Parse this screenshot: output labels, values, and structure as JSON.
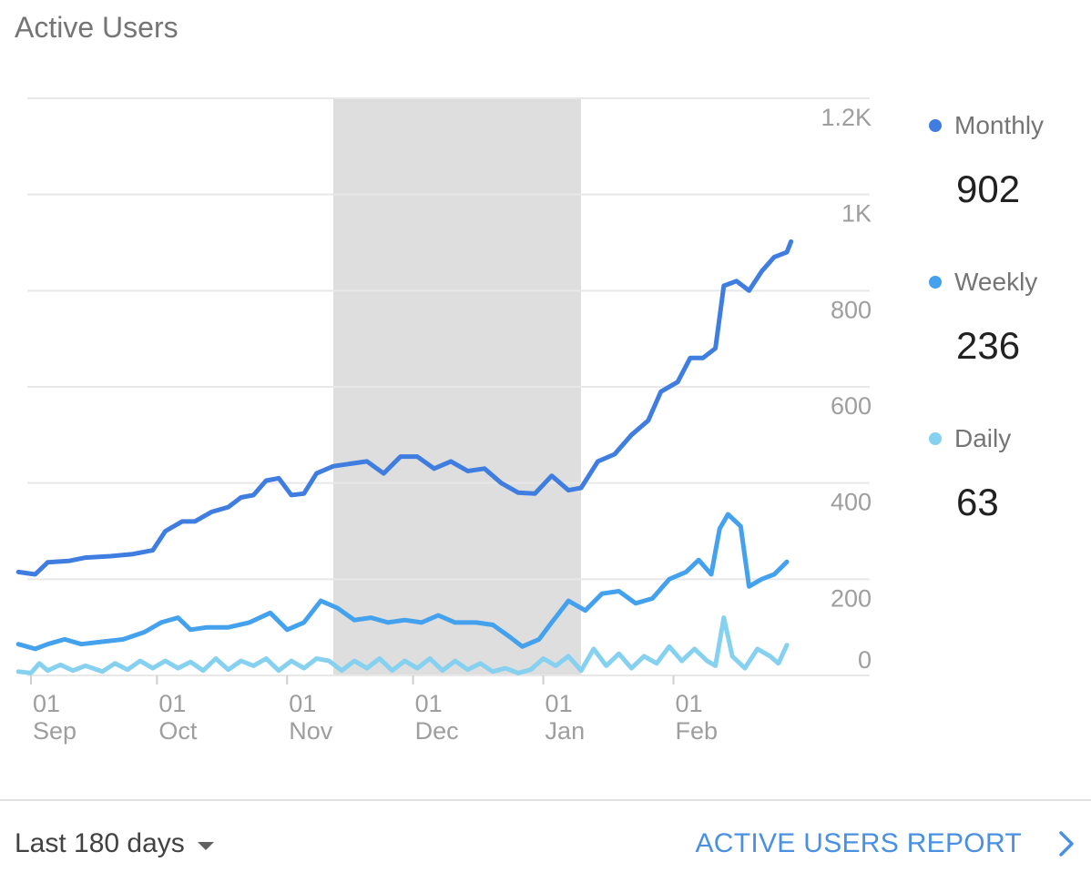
{
  "card": {
    "title": "Active Users"
  },
  "footer": {
    "range_label": "Last 180 days",
    "report_link": "ACTIVE USERS REPORT"
  },
  "legend": [
    {
      "name": "Monthly",
      "value": "902",
      "color": "#3f7de0"
    },
    {
      "name": "Weekly",
      "value": "236",
      "color": "#44a1ee"
    },
    {
      "name": "Daily",
      "value": "63",
      "color": "#86d1f0"
    }
  ],
  "chart_data": {
    "type": "line",
    "title": "Active Users",
    "x_start": "2017-09-01",
    "x_end": "2018-02-28",
    "xticks": [
      {
        "date": "2017-09-01",
        "label1": "01",
        "label2": "Sep"
      },
      {
        "date": "2017-10-01",
        "label1": "01",
        "label2": "Oct"
      },
      {
        "date": "2017-11-01",
        "label1": "01",
        "label2": "Nov"
      },
      {
        "date": "2017-12-01",
        "label1": "01",
        "label2": "Dec"
      },
      {
        "date": "2018-01-01",
        "label1": "01",
        "label2": "Jan"
      },
      {
        "date": "2018-02-01",
        "label1": "01",
        "label2": "Feb"
      }
    ],
    "ylim": [
      0,
      1200
    ],
    "yticks": [
      {
        "value": 1200,
        "label": "1.2K"
      },
      {
        "value": 1000,
        "label": "1K"
      },
      {
        "value": 800,
        "label": "800"
      },
      {
        "value": 600,
        "label": "600"
      },
      {
        "value": 400,
        "label": "400"
      },
      {
        "value": 200,
        "label": "200"
      },
      {
        "value": 0,
        "label": "0"
      }
    ],
    "highlight_range": [
      "2017-11-12",
      "2018-01-10"
    ],
    "series": [
      {
        "name": "Monthly",
        "color": "#3f7de0",
        "points": [
          [
            "2017-08-29",
            215
          ],
          [
            "2017-09-02",
            210
          ],
          [
            "2017-09-05",
            235
          ],
          [
            "2017-09-10",
            238
          ],
          [
            "2017-09-14",
            245
          ],
          [
            "2017-09-20",
            248
          ],
          [
            "2017-09-25",
            252
          ],
          [
            "2017-09-30",
            260
          ],
          [
            "2017-10-03",
            300
          ],
          [
            "2017-10-07",
            320
          ],
          [
            "2017-10-10",
            320
          ],
          [
            "2017-10-14",
            340
          ],
          [
            "2017-10-18",
            350
          ],
          [
            "2017-10-21",
            370
          ],
          [
            "2017-10-24",
            375
          ],
          [
            "2017-10-27",
            405
          ],
          [
            "2017-10-30",
            410
          ],
          [
            "2017-11-02",
            375
          ],
          [
            "2017-11-05",
            378
          ],
          [
            "2017-11-08",
            420
          ],
          [
            "2017-11-12",
            435
          ],
          [
            "2017-11-16",
            440
          ],
          [
            "2017-11-20",
            445
          ],
          [
            "2017-11-24",
            420
          ],
          [
            "2017-11-28",
            455
          ],
          [
            "2017-12-02",
            455
          ],
          [
            "2017-12-06",
            430
          ],
          [
            "2017-12-10",
            445
          ],
          [
            "2017-12-14",
            425
          ],
          [
            "2017-12-18",
            430
          ],
          [
            "2017-12-22",
            400
          ],
          [
            "2017-12-26",
            380
          ],
          [
            "2017-12-30",
            378
          ],
          [
            "2018-01-03",
            415
          ],
          [
            "2018-01-07",
            385
          ],
          [
            "2018-01-10",
            390
          ],
          [
            "2018-01-14",
            445
          ],
          [
            "2018-01-18",
            460
          ],
          [
            "2018-01-22",
            500
          ],
          [
            "2018-01-26",
            530
          ],
          [
            "2018-01-29",
            590
          ],
          [
            "2018-02-02",
            610
          ],
          [
            "2018-02-05",
            660
          ],
          [
            "2018-02-08",
            660
          ],
          [
            "2018-02-11",
            680
          ],
          [
            "2018-02-13",
            810
          ],
          [
            "2018-02-16",
            820
          ],
          [
            "2018-02-19",
            800
          ],
          [
            "2018-02-22",
            840
          ],
          [
            "2018-02-25",
            870
          ],
          [
            "2018-02-28",
            880
          ],
          [
            "2018-03-01",
            902
          ]
        ]
      },
      {
        "name": "Weekly",
        "color": "#44a1ee",
        "points": [
          [
            "2017-08-29",
            65
          ],
          [
            "2017-09-02",
            55
          ],
          [
            "2017-09-05",
            65
          ],
          [
            "2017-09-09",
            75
          ],
          [
            "2017-09-13",
            65
          ],
          [
            "2017-09-18",
            70
          ],
          [
            "2017-09-23",
            75
          ],
          [
            "2017-09-28",
            90
          ],
          [
            "2017-10-02",
            110
          ],
          [
            "2017-10-06",
            120
          ],
          [
            "2017-10-09",
            95
          ],
          [
            "2017-10-13",
            100
          ],
          [
            "2017-10-18",
            100
          ],
          [
            "2017-10-23",
            110
          ],
          [
            "2017-10-28",
            130
          ],
          [
            "2017-11-01",
            95
          ],
          [
            "2017-11-05",
            110
          ],
          [
            "2017-11-09",
            155
          ],
          [
            "2017-11-13",
            140
          ],
          [
            "2017-11-17",
            115
          ],
          [
            "2017-11-21",
            120
          ],
          [
            "2017-11-25",
            110
          ],
          [
            "2017-11-29",
            115
          ],
          [
            "2017-12-03",
            110
          ],
          [
            "2017-12-07",
            125
          ],
          [
            "2017-12-11",
            110
          ],
          [
            "2017-12-16",
            110
          ],
          [
            "2017-12-20",
            105
          ],
          [
            "2017-12-24",
            80
          ],
          [
            "2017-12-27",
            60
          ],
          [
            "2017-12-31",
            75
          ],
          [
            "2018-01-03",
            110
          ],
          [
            "2018-01-07",
            155
          ],
          [
            "2018-01-11",
            135
          ],
          [
            "2018-01-15",
            170
          ],
          [
            "2018-01-19",
            175
          ],
          [
            "2018-01-23",
            150
          ],
          [
            "2018-01-27",
            160
          ],
          [
            "2018-01-31",
            200
          ],
          [
            "2018-02-04",
            215
          ],
          [
            "2018-02-07",
            240
          ],
          [
            "2018-02-10",
            210
          ],
          [
            "2018-02-12",
            305
          ],
          [
            "2018-02-14",
            335
          ],
          [
            "2018-02-17",
            310
          ],
          [
            "2018-02-19",
            185
          ],
          [
            "2018-02-22",
            200
          ],
          [
            "2018-02-25",
            210
          ],
          [
            "2018-02-28",
            236
          ]
        ]
      },
      {
        "name": "Daily",
        "color": "#86d1f0",
        "points": [
          [
            "2017-08-29",
            8
          ],
          [
            "2017-09-01",
            5
          ],
          [
            "2017-09-03",
            25
          ],
          [
            "2017-09-05",
            10
          ],
          [
            "2017-09-08",
            22
          ],
          [
            "2017-09-11",
            10
          ],
          [
            "2017-09-14",
            20
          ],
          [
            "2017-09-18",
            8
          ],
          [
            "2017-09-21",
            25
          ],
          [
            "2017-09-24",
            12
          ],
          [
            "2017-09-27",
            30
          ],
          [
            "2017-09-30",
            15
          ],
          [
            "2017-10-03",
            30
          ],
          [
            "2017-10-06",
            15
          ],
          [
            "2017-10-09",
            28
          ],
          [
            "2017-10-12",
            10
          ],
          [
            "2017-10-15",
            35
          ],
          [
            "2017-10-18",
            12
          ],
          [
            "2017-10-21",
            30
          ],
          [
            "2017-10-24",
            20
          ],
          [
            "2017-10-27",
            35
          ],
          [
            "2017-10-30",
            10
          ],
          [
            "2017-11-02",
            30
          ],
          [
            "2017-11-05",
            15
          ],
          [
            "2017-11-08",
            35
          ],
          [
            "2017-11-11",
            30
          ],
          [
            "2017-11-14",
            10
          ],
          [
            "2017-11-17",
            30
          ],
          [
            "2017-11-20",
            15
          ],
          [
            "2017-11-23",
            35
          ],
          [
            "2017-11-26",
            10
          ],
          [
            "2017-11-29",
            30
          ],
          [
            "2017-12-02",
            15
          ],
          [
            "2017-12-05",
            35
          ],
          [
            "2017-12-08",
            10
          ],
          [
            "2017-12-11",
            30
          ],
          [
            "2017-12-14",
            12
          ],
          [
            "2017-12-17",
            25
          ],
          [
            "2017-12-20",
            8
          ],
          [
            "2017-12-23",
            15
          ],
          [
            "2017-12-26",
            5
          ],
          [
            "2017-12-29",
            12
          ],
          [
            "2018-01-01",
            35
          ],
          [
            "2018-01-04",
            20
          ],
          [
            "2018-01-07",
            40
          ],
          [
            "2018-01-10",
            10
          ],
          [
            "2018-01-13",
            55
          ],
          [
            "2018-01-16",
            20
          ],
          [
            "2018-01-19",
            45
          ],
          [
            "2018-01-22",
            15
          ],
          [
            "2018-01-25",
            40
          ],
          [
            "2018-01-28",
            25
          ],
          [
            "2018-01-31",
            60
          ],
          [
            "2018-02-03",
            30
          ],
          [
            "2018-02-06",
            55
          ],
          [
            "2018-02-09",
            30
          ],
          [
            "2018-02-11",
            20
          ],
          [
            "2018-02-13",
            120
          ],
          [
            "2018-02-15",
            40
          ],
          [
            "2018-02-18",
            15
          ],
          [
            "2018-02-21",
            55
          ],
          [
            "2018-02-24",
            40
          ],
          [
            "2018-02-26",
            25
          ],
          [
            "2018-02-28",
            63
          ]
        ]
      }
    ]
  }
}
